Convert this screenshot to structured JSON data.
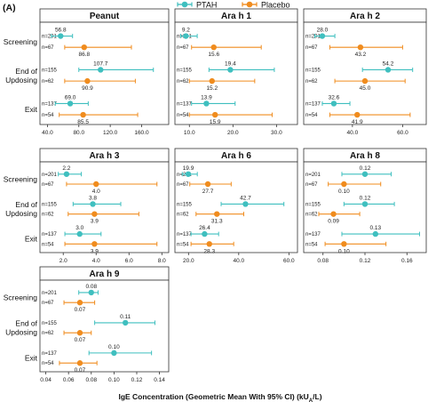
{
  "figure_label": "(A)",
  "x_axis_title": "IgE Concentration (Geometric Mean With 95% CI) (kU",
  "x_axis_title_sub": "A",
  "x_axis_title_end": "/L)",
  "row_labels": [
    "Screening",
    "End of\nUpdosing",
    "Exit"
  ],
  "colors": {
    "ptah": "#3fbfbf",
    "placebo": "#f08c1e"
  },
  "legend": [
    {
      "name": "PTAH",
      "color": "#3fbfbf"
    },
    {
      "name": "Placebo",
      "color": "#f08c1e"
    }
  ],
  "chart_data": [
    {
      "type": "scatter",
      "title": "Peanut",
      "xlim": [
        35,
        190
      ],
      "ticks": [
        40,
        80,
        120,
        160
      ],
      "tick_labels": [
        "40.0",
        "80.0",
        "120.0",
        "160.0"
      ],
      "rows": [
        {
          "ptah": {
            "n": "n=201",
            "mean": 56.8,
            "label": "56.8",
            "lo": 45,
            "hi": 72
          },
          "placebo": {
            "n": "n=67",
            "mean": 86.8,
            "label": "86.8",
            "lo": 62,
            "hi": 147
          }
        },
        {
          "ptah": {
            "n": "n=155",
            "mean": 107.7,
            "label": "107.7",
            "lo": 80,
            "hi": 175
          },
          "placebo": {
            "n": "n=62",
            "mean": 90.9,
            "label": "90.9",
            "lo": 62,
            "hi": 152
          }
        },
        {
          "ptah": {
            "n": "n=137",
            "mean": 69.0,
            "label": "69.0",
            "lo": 50,
            "hi": 92
          },
          "placebo": {
            "n": "n=54",
            "mean": 85.5,
            "label": "85.5",
            "lo": 55,
            "hi": 155
          }
        }
      ]
    },
    {
      "type": "scatter",
      "title": "Ara h 1",
      "xlim": [
        7.5,
        34
      ],
      "ticks": [
        10,
        20,
        30
      ],
      "tick_labels": [
        "10.0",
        "20.0",
        "30.0"
      ],
      "rows": [
        {
          "ptah": {
            "n": "n=201",
            "mean": 9.2,
            "label": "9.2",
            "lo": 8.0,
            "hi": 11.8
          },
          "placebo": {
            "n": "n=67",
            "mean": 15.6,
            "label": "15.6",
            "lo": 10.5,
            "hi": 26.5
          }
        },
        {
          "ptah": {
            "n": "n=155",
            "mean": 19.4,
            "label": "19.4",
            "lo": 14.5,
            "hi": 29.5
          },
          "placebo": {
            "n": "n=62",
            "mean": 15.2,
            "label": "15.2",
            "lo": 10.0,
            "hi": 25.0
          }
        },
        {
          "ptah": {
            "n": "n=137",
            "mean": 13.9,
            "label": "13.9",
            "lo": 10.5,
            "hi": 20.5
          },
          "placebo": {
            "n": "n=54",
            "mean": 15.9,
            "label": "15.9",
            "lo": 10.0,
            "hi": 29.0
          }
        }
      ]
    },
    {
      "type": "scatter",
      "title": "Ara h 2",
      "xlim": [
        22,
        68
      ],
      "ticks": [
        40,
        60
      ],
      "tick_labels": [
        "40.0",
        "60.0"
      ],
      "rows": [
        {
          "ptah": {
            "n": "n=201",
            "mean": 28.0,
            "label": "28.0",
            "lo": 25,
            "hi": 33
          },
          "placebo": {
            "n": "n=67",
            "mean": 43.2,
            "label": "43.2",
            "lo": 31,
            "hi": 60
          }
        },
        {
          "ptah": {
            "n": "n=155",
            "mean": 54.2,
            "label": "54.2",
            "lo": 44,
            "hi": 64
          },
          "placebo": {
            "n": "n=62",
            "mean": 45.0,
            "label": "45.0",
            "lo": 33,
            "hi": 61
          }
        },
        {
          "ptah": {
            "n": "n=137",
            "mean": 32.6,
            "label": "32.6",
            "lo": 28,
            "hi": 39
          },
          "placebo": {
            "n": "n=54",
            "mean": 41.9,
            "label": "41.9",
            "lo": 31,
            "hi": 63
          }
        }
      ]
    },
    {
      "type": "scatter",
      "title": "Ara h 3",
      "xlim": [
        0.8,
        8.2
      ],
      "ticks": [
        2,
        4,
        6,
        8
      ],
      "tick_labels": [
        "2.0",
        "4.0",
        "6.0",
        "8.0"
      ],
      "rows": [
        {
          "ptah": {
            "n": "n=201",
            "mean": 2.2,
            "label": "2.2",
            "lo": 1.7,
            "hi": 3.1
          },
          "placebo": {
            "n": "n=67",
            "mean": 4.0,
            "label": "4.0",
            "lo": 2.2,
            "hi": 7.7
          }
        },
        {
          "ptah": {
            "n": "n=155",
            "mean": 3.8,
            "label": "3.8",
            "lo": 2.6,
            "hi": 5.5
          },
          "placebo": {
            "n": "n=62",
            "mean": 3.9,
            "label": "3.9",
            "lo": 2.3,
            "hi": 6.6
          }
        },
        {
          "ptah": {
            "n": "n=137",
            "mean": 3.0,
            "label": "3.0",
            "lo": 2.1,
            "hi": 4.3
          },
          "placebo": {
            "n": "n=54",
            "mean": 3.9,
            "label": "3.9",
            "lo": 2.1,
            "hi": 7.7
          }
        }
      ]
    },
    {
      "type": "scatter",
      "title": "Ara h 6",
      "xlim": [
        16,
        62
      ],
      "ticks": [
        20,
        40,
        60
      ],
      "tick_labels": [
        "20.0",
        "40.0",
        "60.0"
      ],
      "rows": [
        {
          "ptah": {
            "n": "n=201",
            "mean": 19.9,
            "label": "19.9",
            "lo": 17.5,
            "hi": 23.5
          },
          "placebo": {
            "n": "n=67",
            "mean": 27.7,
            "label": "27.7",
            "lo": 20.5,
            "hi": 37
          }
        },
        {
          "ptah": {
            "n": "n=155",
            "mean": 42.7,
            "label": "42.7",
            "lo": 33,
            "hi": 58
          },
          "placebo": {
            "n": "n=62",
            "mean": 31.3,
            "label": "31.3",
            "lo": 23,
            "hi": 42
          }
        },
        {
          "ptah": {
            "n": "n=137",
            "mean": 26.4,
            "label": "26.4",
            "lo": 21,
            "hi": 32
          },
          "placebo": {
            "n": "n=54",
            "mean": 28.3,
            "label": "28.3",
            "lo": 21,
            "hi": 38
          }
        }
      ]
    },
    {
      "type": "scatter",
      "title": "Ara h 8",
      "xlim": [
        0.065,
        0.175
      ],
      "ticks": [
        0.08,
        0.12,
        0.16
      ],
      "tick_labels": [
        "0.08",
        "0.12",
        "0.16"
      ],
      "rows": [
        {
          "ptah": {
            "n": "n=201",
            "mean": 0.12,
            "label": "0.12",
            "lo": 0.098,
            "hi": 0.145
          },
          "placebo": {
            "n": "n=67",
            "mean": 0.1,
            "label": "0.10",
            "lo": 0.085,
            "hi": 0.135
          }
        },
        {
          "ptah": {
            "n": "n=155",
            "mean": 0.12,
            "label": "0.12",
            "lo": 0.1,
            "hi": 0.148
          },
          "placebo": {
            "n": "n=62",
            "mean": 0.09,
            "label": "0.09",
            "lo": 0.076,
            "hi": 0.115
          }
        },
        {
          "ptah": {
            "n": "n=137",
            "mean": 0.13,
            "label": "0.13",
            "lo": 0.098,
            "hi": 0.172
          },
          "placebo": {
            "n": "n=54",
            "mean": 0.1,
            "label": "0.10",
            "lo": 0.082,
            "hi": 0.14
          }
        }
      ]
    },
    {
      "type": "scatter",
      "title": "Ara h 9",
      "xlim": [
        0.038,
        0.145
      ],
      "ticks": [
        0.04,
        0.06,
        0.08,
        0.1,
        0.12,
        0.14
      ],
      "tick_labels": [
        "0.04",
        "0.06",
        "0.08",
        "0.10",
        "0.12",
        "0.14"
      ],
      "rows": [
        {
          "ptah": {
            "n": "n=201",
            "mean": 0.08,
            "label": "0.08",
            "lo": 0.069,
            "hi": 0.086
          },
          "placebo": {
            "n": "n=67",
            "mean": 0.07,
            "label": "0.07",
            "lo": 0.056,
            "hi": 0.083
          }
        },
        {
          "ptah": {
            "n": "n=155",
            "mean": 0.11,
            "label": "0.11",
            "lo": 0.083,
            "hi": 0.136
          },
          "placebo": {
            "n": "n=62",
            "mean": 0.07,
            "label": "0.07",
            "lo": 0.056,
            "hi": 0.08
          }
        },
        {
          "ptah": {
            "n": "n=137",
            "mean": 0.1,
            "label": "0.10",
            "lo": 0.078,
            "hi": 0.133
          },
          "placebo": {
            "n": "n=54",
            "mean": 0.07,
            "label": "0.07",
            "lo": 0.052,
            "hi": 0.085
          }
        }
      ]
    }
  ]
}
